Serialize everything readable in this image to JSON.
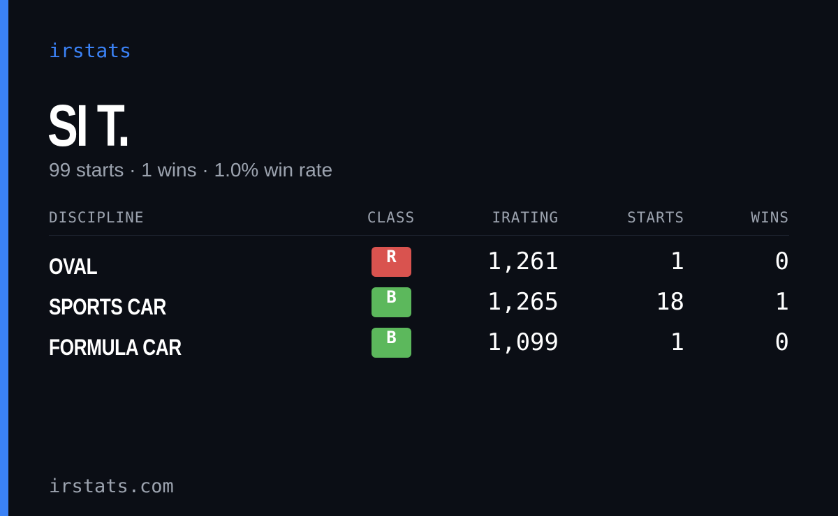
{
  "brand": "irstats",
  "name": "SI T.",
  "summary": "99 starts · 1 wins · 1.0% win rate",
  "table": {
    "headers": [
      "DISCIPLINE",
      "CLASS",
      "IRATING",
      "STARTS",
      "WINS"
    ],
    "rows": [
      [
        "OVAL",
        "R",
        "1,261",
        "1",
        "0"
      ],
      [
        "SPORTS CAR",
        "B",
        "1,265",
        "18",
        "1"
      ],
      [
        "FORMULA CAR",
        "B",
        "1,099",
        "1",
        "0"
      ]
    ]
  },
  "class_colors": {
    "R": "#d9534f",
    "B": "#5cb85c"
  },
  "footer": "irstats.com"
}
